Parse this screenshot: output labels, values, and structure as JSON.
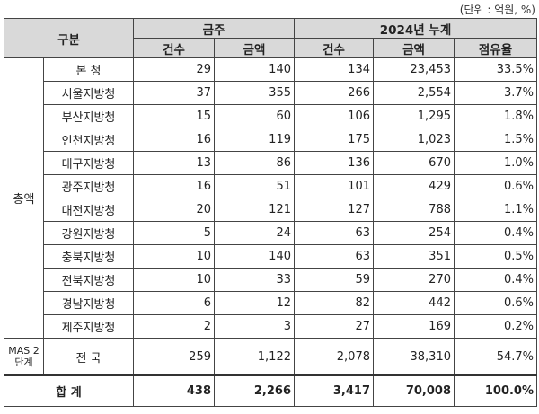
{
  "unit_note": "(단위 : 억원, %)",
  "header": {
    "category": "구분",
    "this_week": "금주",
    "cumulative": "2024년 누계",
    "count": "건수",
    "amount": "금액",
    "share": "점유율"
  },
  "group_total": "총액",
  "group_mas": "MAS 2단계",
  "rows": [
    {
      "name": "본  청",
      "w_count": "29",
      "w_amount": "140",
      "c_count": "134",
      "c_amount": "23,453",
      "share": "33.5%"
    },
    {
      "name": "서울지방청",
      "w_count": "37",
      "w_amount": "355",
      "c_count": "266",
      "c_amount": "2,554",
      "share": "3.7%"
    },
    {
      "name": "부산지방청",
      "w_count": "15",
      "w_amount": "60",
      "c_count": "106",
      "c_amount": "1,295",
      "share": "1.8%"
    },
    {
      "name": "인천지방청",
      "w_count": "16",
      "w_amount": "119",
      "c_count": "175",
      "c_amount": "1,023",
      "share": "1.5%"
    },
    {
      "name": "대구지방청",
      "w_count": "13",
      "w_amount": "86",
      "c_count": "136",
      "c_amount": "670",
      "share": "1.0%"
    },
    {
      "name": "광주지방청",
      "w_count": "16",
      "w_amount": "51",
      "c_count": "101",
      "c_amount": "429",
      "share": "0.6%"
    },
    {
      "name": "대전지방청",
      "w_count": "20",
      "w_amount": "121",
      "c_count": "127",
      "c_amount": "788",
      "share": "1.1%"
    },
    {
      "name": "강원지방청",
      "w_count": "5",
      "w_amount": "24",
      "c_count": "63",
      "c_amount": "254",
      "share": "0.4%"
    },
    {
      "name": "충북지방청",
      "w_count": "10",
      "w_amount": "140",
      "c_count": "63",
      "c_amount": "351",
      "share": "0.5%"
    },
    {
      "name": "전북지방청",
      "w_count": "10",
      "w_amount": "33",
      "c_count": "59",
      "c_amount": "270",
      "share": "0.4%"
    },
    {
      "name": "경남지방청",
      "w_count": "6",
      "w_amount": "12",
      "c_count": "82",
      "c_amount": "442",
      "share": "0.6%"
    },
    {
      "name": "제주지방청",
      "w_count": "2",
      "w_amount": "3",
      "c_count": "27",
      "c_amount": "169",
      "share": "0.2%"
    }
  ],
  "mas_row": {
    "name": "전  국",
    "w_count": "259",
    "w_amount": "1,122",
    "c_count": "2,078",
    "c_amount": "38,310",
    "share": "54.7%"
  },
  "total_row": {
    "name": "합  계",
    "w_count": "438",
    "w_amount": "2,266",
    "c_count": "3,417",
    "c_amount": "70,008",
    "share": "100.0%"
  }
}
